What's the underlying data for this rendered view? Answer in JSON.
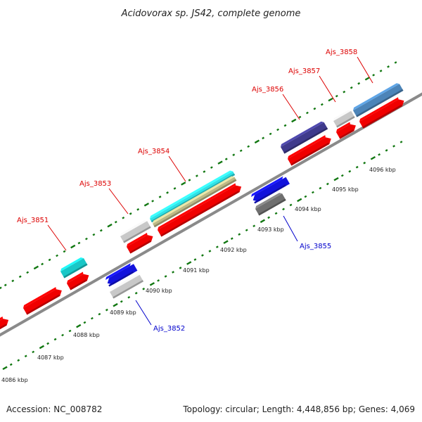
{
  "title": "Acidovorax sp. JS42, complete genome",
  "footer": {
    "accession": "Accession: NC_008782",
    "summary": "Topology: circular; Length: 4,448,856 bp; Genes: 4,069"
  },
  "colors": {
    "cds_forward": "#f00000",
    "gene_label_top": "#dd0000",
    "gene_label_bottom": "#0000cc",
    "backbone": "#888888",
    "tick": "#117711"
  },
  "kbp_labels": [
    "4086 kbp",
    "4087 kbp",
    "4088 kbp",
    "4089 kbp",
    "4090 kbp",
    "4091 kbp",
    "4092 kbp",
    "4093 kbp",
    "4094 kbp",
    "4095 kbp",
    "4096 kbp"
  ],
  "gene_labels": [
    {
      "name": "Ajs_3851",
      "strand": "top"
    },
    {
      "name": "Ajs_3852",
      "strand": "bottom"
    },
    {
      "name": "Ajs_3853",
      "strand": "top"
    },
    {
      "name": "Ajs_3854",
      "strand": "top"
    },
    {
      "name": "Ajs_3855",
      "strand": "bottom"
    },
    {
      "name": "Ajs_3856",
      "strand": "top"
    },
    {
      "name": "Ajs_3857",
      "strand": "top"
    },
    {
      "name": "Ajs_3858",
      "strand": "top"
    }
  ],
  "features": [
    {
      "id": "cds-a",
      "track": "cds",
      "color": "#f00000"
    },
    {
      "id": "cds-b",
      "track": "cds",
      "color": "#f00000"
    },
    {
      "id": "cds-c",
      "track": "cds",
      "color": "#f00000"
    },
    {
      "id": "cds-d",
      "track": "cds",
      "color": "#f00000"
    },
    {
      "id": "cds-e",
      "track": "cds",
      "color": "#f00000"
    },
    {
      "id": "cds-f",
      "track": "cds",
      "color": "#f00000"
    },
    {
      "id": "cds-g",
      "track": "cds",
      "color": "#f00000"
    },
    {
      "id": "cds-h",
      "track": "cds",
      "color": "#f00000"
    },
    {
      "id": "gene-3851",
      "track": "gene",
      "color": "#19c7c7"
    },
    {
      "id": "gene-3853",
      "track": "gene",
      "color": "#c8c8c8"
    },
    {
      "id": "gene-3854",
      "track": "gene",
      "color": "#2fe2e6"
    },
    {
      "id": "gene-3854-sub",
      "track": "gene",
      "color": "#bdb986"
    },
    {
      "id": "gene-3856",
      "track": "gene",
      "color": "#3f3a8c"
    },
    {
      "id": "gene-3857",
      "track": "gene",
      "color": "#c8c8c8"
    },
    {
      "id": "gene-3858",
      "track": "gene",
      "color": "#4c84b8"
    },
    {
      "id": "gene-3852-a",
      "track": "bottom",
      "color": "#1212dc"
    },
    {
      "id": "gene-3852-b",
      "track": "bottom",
      "color": "#c8c8c8"
    },
    {
      "id": "gene-3855-a",
      "track": "bottom",
      "color": "#1212dc"
    },
    {
      "id": "gene-3855-b",
      "track": "bottom",
      "color": "#6f6f6f"
    }
  ]
}
